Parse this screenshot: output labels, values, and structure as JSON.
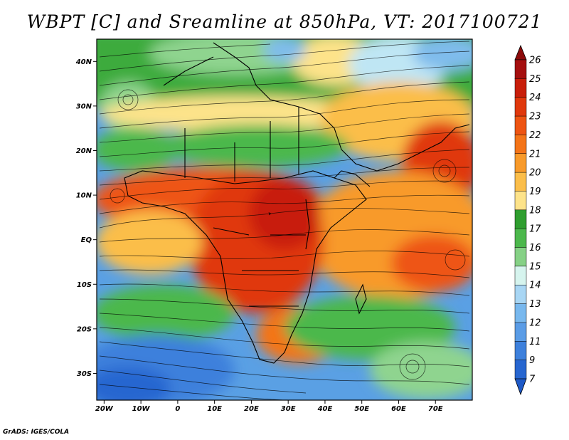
{
  "title": "WBPT [C] and Sreamline at 850hPa, VT: 2017100721",
  "footer": "GrADS: IGES/COLA",
  "map": {
    "lat_range": [
      -36,
      45
    ],
    "lon_range": [
      -22,
      80
    ],
    "lat_ticks": [
      {
        "value": 40,
        "label": "40N"
      },
      {
        "value": 30,
        "label": "30N"
      },
      {
        "value": 20,
        "label": "20N"
      },
      {
        "value": 10,
        "label": "10N"
      },
      {
        "value": 0,
        "label": "EQ"
      },
      {
        "value": -10,
        "label": "10S"
      },
      {
        "value": -20,
        "label": "20S"
      },
      {
        "value": -30,
        "label": "30S"
      }
    ],
    "lon_ticks": [
      {
        "value": -20,
        "label": "20W"
      },
      {
        "value": -10,
        "label": "10W"
      },
      {
        "value": 0,
        "label": "0"
      },
      {
        "value": 10,
        "label": "10E"
      },
      {
        "value": 20,
        "label": "20E"
      },
      {
        "value": 30,
        "label": "30E"
      },
      {
        "value": 40,
        "label": "40E"
      },
      {
        "value": 50,
        "label": "50E"
      },
      {
        "value": 60,
        "label": "60E"
      },
      {
        "value": 70,
        "label": "70E"
      }
    ]
  },
  "colorbar": {
    "levels": [
      "26",
      "25",
      "24",
      "23",
      "22",
      "21",
      "20",
      "19",
      "18",
      "17",
      "16",
      "15",
      "14",
      "13",
      "12",
      "11",
      "9",
      "7"
    ],
    "colors": [
      "#a50f0f",
      "#c81e0a",
      "#e0380c",
      "#ee5412",
      "#f47418",
      "#f89a2a",
      "#fbbe4a",
      "#fde38a",
      "#2f9e2f",
      "#4cb84c",
      "#86d186",
      "#d6f4ee",
      "#a8d6f4",
      "#78b8ee",
      "#5a9ce6",
      "#3d80dc",
      "#2766d0"
    ],
    "top_color": "#8c0a0a",
    "bottom_color": "#1e5ac8"
  }
}
